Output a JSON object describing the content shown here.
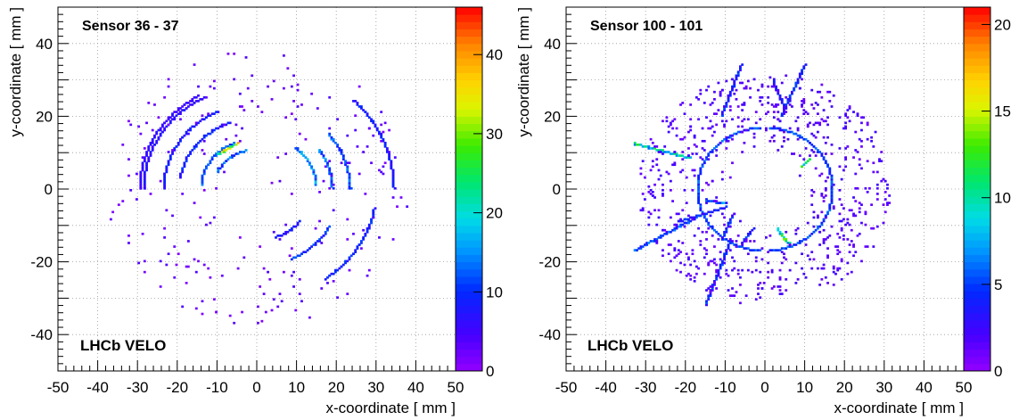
{
  "chart_data": [
    {
      "type": "heatmap",
      "title": "Sensor 36 - 37",
      "annotation": "LHCb VELO",
      "xlabel": "x-coordinate  [ mm ]",
      "ylabel": "y-coordinate  [ mm ]",
      "xlim": [
        -50,
        50
      ],
      "ylim": [
        -50,
        50
      ],
      "x_ticks": [
        -50,
        -40,
        -30,
        -20,
        -10,
        0,
        10,
        20,
        30,
        40,
        50
      ],
      "y_ticks": [
        -40,
        -20,
        0,
        20,
        40
      ],
      "grid": true,
      "colorbar": {
        "min": 0,
        "max": 46,
        "ticks": [
          0,
          10,
          20,
          30,
          40
        ]
      },
      "features": {
        "arcs": [
          {
            "r": 29.5,
            "a0": 120,
            "a1": 180,
            "z": 6
          },
          {
            "r": 28.5,
            "a0": 118,
            "a1": 180,
            "z": 7
          },
          {
            "r": 23.5,
            "a0": 115,
            "a1": 180,
            "z": 8
          },
          {
            "r": 19.5,
            "a0": 110,
            "a1": 170,
            "z": 9
          },
          {
            "r": 14.0,
            "a0": 115,
            "a1": 175,
            "z": 11
          },
          {
            "r": 11.0,
            "a0": 105,
            "a1": 155,
            "z": 12
          },
          {
            "r": 34.5,
            "a0": 0,
            "a1": 45,
            "z": 8
          },
          {
            "r": 23.5,
            "a0": 0,
            "a1": 40,
            "z": 12
          },
          {
            "r": 19.0,
            "a0": 0,
            "a1": 35,
            "z": 13
          },
          {
            "r": 15.0,
            "a0": 5,
            "a1": 50,
            "z": 14
          },
          {
            "r": 30.0,
            "a0": -55,
            "a1": -10,
            "z": 9
          },
          {
            "r": 21.0,
            "a0": -65,
            "a1": -30,
            "z": 10
          },
          {
            "r": 14.0,
            "a0": -70,
            "a1": -40,
            "z": 8
          }
        ],
        "tracks": [
          {
            "x0": -10,
            "y0": 9.5,
            "x1": -5,
            "y1": 12.5,
            "z": 28
          }
        ],
        "scatter": {
          "count": 230,
          "r_min": 3,
          "r_max": 38,
          "seed": 11
        }
      }
    },
    {
      "type": "heatmap",
      "title": "Sensor 100 - 101",
      "annotation": "LHCb VELO",
      "xlabel": "x-coordinate  [ mm ]",
      "ylabel": "y-coordinate  [ mm ]",
      "xlim": [
        -50,
        50
      ],
      "ylim": [
        -50,
        50
      ],
      "x_ticks": [
        -50,
        -40,
        -30,
        -20,
        -10,
        0,
        10,
        20,
        30,
        40,
        50
      ],
      "y_ticks": [
        -40,
        -20,
        0,
        20,
        40
      ],
      "grid": true,
      "colorbar": {
        "min": 0,
        "max": 21,
        "ticks": [
          0,
          5,
          10,
          15,
          20
        ]
      },
      "features": {
        "arcs": [
          {
            "r": 17.0,
            "a0": 95,
            "a1": 265,
            "z": 5
          },
          {
            "r": 17.0,
            "a0": -85,
            "a1": 85,
            "z": 5
          }
        ],
        "tracks": [
          {
            "x0": -33,
            "y0": 12.5,
            "x1": -19,
            "y1": 8.5,
            "z": 9
          },
          {
            "x0": -33,
            "y0": -17,
            "x1": -16,
            "y1": -7,
            "z": 5
          },
          {
            "x0": -15,
            "y0": -32,
            "x1": -9,
            "y1": -15,
            "z": 4
          },
          {
            "x0": -11,
            "y0": 20,
            "x1": -6,
            "y1": 34,
            "z": 4
          },
          {
            "x0": 4,
            "y0": 20,
            "x1": 10,
            "y1": 34,
            "z": 4
          },
          {
            "x0": 5,
            "y0": 22,
            "x1": 2,
            "y1": 30,
            "z": 3
          },
          {
            "x0": 3,
            "y0": -11,
            "x1": 6,
            "y1": -15,
            "z": 10
          },
          {
            "x0": 9,
            "y0": 6,
            "x1": 11,
            "y1": 8,
            "z": 10
          },
          {
            "x0": -22,
            "y0": -9,
            "x1": -10,
            "y1": -5,
            "z": 4
          },
          {
            "x0": -15,
            "y0": -3,
            "x1": -10,
            "y1": -4,
            "z": 6
          },
          {
            "x0": -11,
            "y0": -14,
            "x1": -8,
            "y1": -7,
            "z": 4
          },
          {
            "x0": -6,
            "y0": -15,
            "x1": -3,
            "y1": -11,
            "z": 4
          }
        ],
        "scatter": {
          "count": 720,
          "r_min": 8,
          "r_max": 32,
          "seed": 57
        }
      }
    }
  ]
}
